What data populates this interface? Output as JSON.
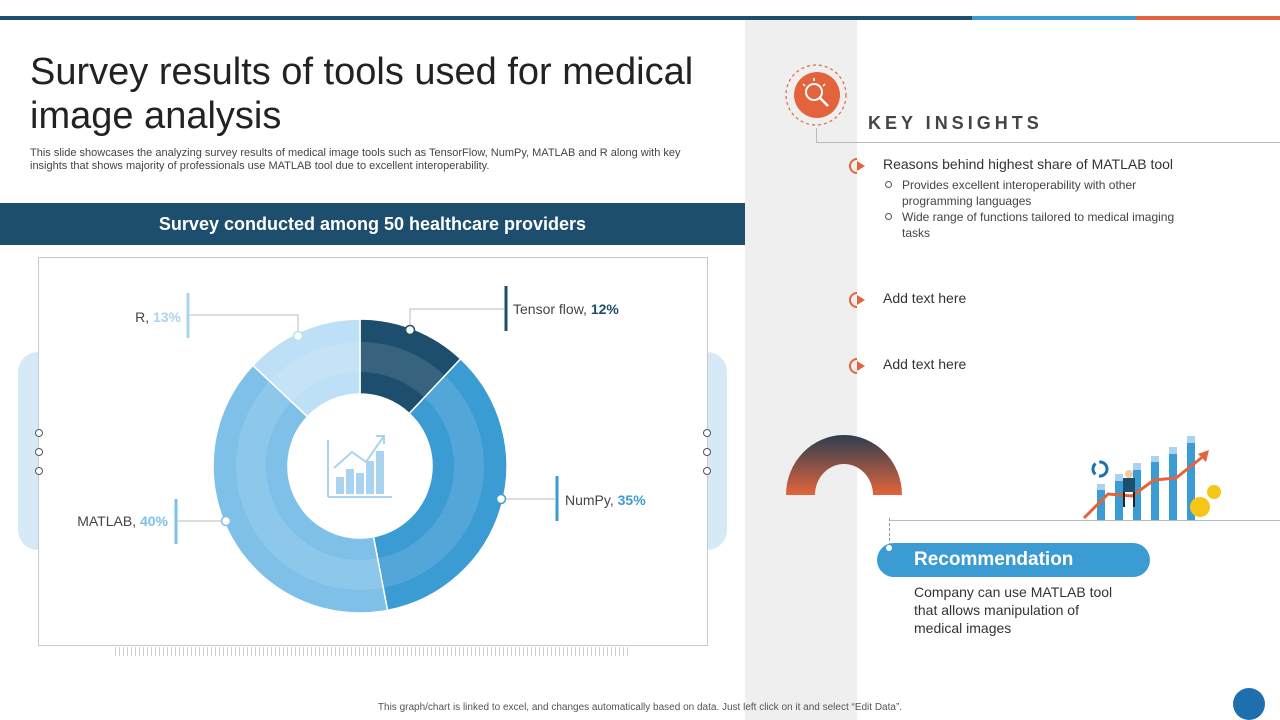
{
  "header": {
    "title": "Survey results of tools used for medical image analysis",
    "subtitle": "This slide showcases the analyzing survey results of medical image tools such as TensorFlow, NumPy, MATLAB  and R along with key insights that shows majority of professionals use MATLAB  tool due to excellent interoperability."
  },
  "banner": {
    "text": "Survey conducted among 50 healthcare providers"
  },
  "colors": {
    "dark_navy": "#1d4e6e",
    "accent_blue": "#3b9bd3",
    "accent_orange": "#e3643c"
  },
  "chart_data": {
    "type": "pie",
    "subtype": "donut",
    "title": "",
    "slices": [
      {
        "label": "Tensor flow",
        "value": 12,
        "value_label": "12%",
        "color": "#1d4e6e"
      },
      {
        "label": "NumPy",
        "value": 35,
        "value_label": "35%",
        "color": "#3b9bd3"
      },
      {
        "label": "MATLAB",
        "value": 40,
        "value_label": "40%",
        "color": "#7ec0e8"
      },
      {
        "label": "R",
        "value": 13,
        "value_label": "13%",
        "color": "#bde0f6"
      }
    ],
    "center_icon": "growth-chart-icon"
  },
  "insights": {
    "title": "KEY INSIGHTS",
    "icon": "lightbulb-search-icon",
    "items": [
      {
        "heading": "Reasons behind highest share of MATLAB  tool",
        "bullets": [
          "Provides  excellent  interoperability  with  other  programming  languages",
          "Wide range of functions tailored to medical imaging tasks"
        ]
      },
      {
        "heading": "Add text here",
        "bullets": []
      },
      {
        "heading": "Add text here",
        "bullets": []
      }
    ]
  },
  "recommendation": {
    "title": "Recommendation",
    "text": "Company can use MATLAB tool that allows manipulation of medical images",
    "illustration": "business-growth-illustration"
  },
  "footer": {
    "text": "This graph/chart is linked to excel, and changes automatically based on data. Just left click on it and select “Edit Data”."
  }
}
